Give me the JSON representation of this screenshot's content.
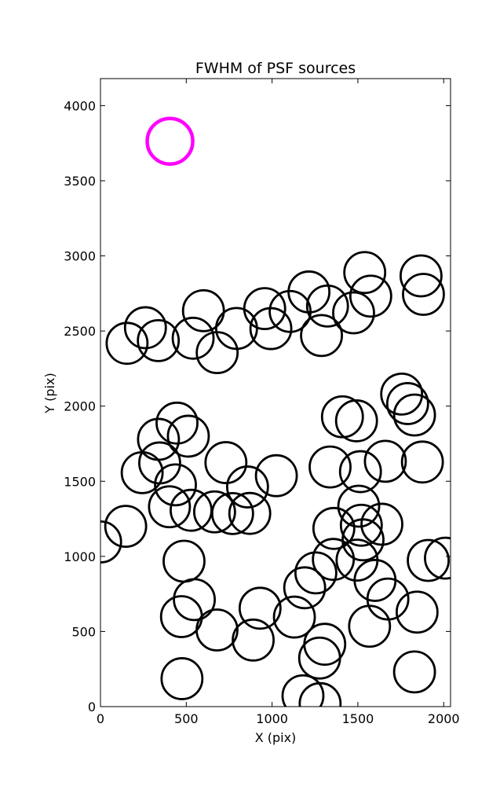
{
  "chart_data": {
    "type": "scatter",
    "title": "FWHM of PSF sources",
    "xlabel": "X (pix)",
    "ylabel": "Y (pix)",
    "xlim": [
      0,
      2040
    ],
    "ylim": [
      0,
      4180
    ],
    "xticks": [
      0,
      500,
      1000,
      1500,
      2000
    ],
    "yticks": [
      0,
      500,
      1000,
      1500,
      2000,
      2500,
      3000,
      3500,
      4000
    ],
    "grid": false,
    "legend": "none",
    "marker": "open-circle",
    "colors": {
      "points": "#000000",
      "reference": "#ff00ff"
    },
    "reference_circle": {
      "x": 405,
      "y": 3763
    },
    "points": [
      {
        "x": 155,
        "y": 2418
      },
      {
        "x": 262,
        "y": 2522
      },
      {
        "x": 337,
        "y": 2436
      },
      {
        "x": 540,
        "y": 2452
      },
      {
        "x": 600,
        "y": 2635
      },
      {
        "x": 680,
        "y": 2356
      },
      {
        "x": 793,
        "y": 2517
      },
      {
        "x": 957,
        "y": 2649
      },
      {
        "x": 993,
        "y": 2516
      },
      {
        "x": 1105,
        "y": 2630
      },
      {
        "x": 1215,
        "y": 2760
      },
      {
        "x": 1323,
        "y": 2666
      },
      {
        "x": 1288,
        "y": 2470
      },
      {
        "x": 1475,
        "y": 2621
      },
      {
        "x": 1540,
        "y": 2889
      },
      {
        "x": 1575,
        "y": 2732
      },
      {
        "x": 1868,
        "y": 2867
      },
      {
        "x": 1882,
        "y": 2744
      },
      {
        "x": 338,
        "y": 1779
      },
      {
        "x": 446,
        "y": 1887
      },
      {
        "x": 512,
        "y": 1800
      },
      {
        "x": 345,
        "y": 1622
      },
      {
        "x": 243,
        "y": 1557
      },
      {
        "x": 437,
        "y": 1476
      },
      {
        "x": 402,
        "y": 1330
      },
      {
        "x": 528,
        "y": 1307
      },
      {
        "x": 665,
        "y": 1296
      },
      {
        "x": 731,
        "y": 1624
      },
      {
        "x": 857,
        "y": 1462
      },
      {
        "x": 770,
        "y": 1285
      },
      {
        "x": 870,
        "y": 1286
      },
      {
        "x": 1025,
        "y": 1537
      },
      {
        "x": 1410,
        "y": 1929
      },
      {
        "x": 1492,
        "y": 1902
      },
      {
        "x": 1755,
        "y": 2080
      },
      {
        "x": 1790,
        "y": 2017
      },
      {
        "x": 1830,
        "y": 1941
      },
      {
        "x": 1338,
        "y": 1595
      },
      {
        "x": 1515,
        "y": 1564
      },
      {
        "x": 1660,
        "y": 1633
      },
      {
        "x": 1876,
        "y": 1628
      },
      {
        "x": 1,
        "y": 1096
      },
      {
        "x": 147,
        "y": 1200
      },
      {
        "x": 487,
        "y": 968
      },
      {
        "x": 547,
        "y": 712
      },
      {
        "x": 472,
        "y": 599
      },
      {
        "x": 679,
        "y": 510
      },
      {
        "x": 930,
        "y": 655
      },
      {
        "x": 890,
        "y": 443
      },
      {
        "x": 1130,
        "y": 596
      },
      {
        "x": 1190,
        "y": 791
      },
      {
        "x": 1255,
        "y": 890
      },
      {
        "x": 1360,
        "y": 1186
      },
      {
        "x": 1357,
        "y": 980
      },
      {
        "x": 1505,
        "y": 1334
      },
      {
        "x": 1520,
        "y": 1207
      },
      {
        "x": 1530,
        "y": 1110
      },
      {
        "x": 1640,
        "y": 1214
      },
      {
        "x": 1495,
        "y": 975
      },
      {
        "x": 1600,
        "y": 840
      },
      {
        "x": 1675,
        "y": 716
      },
      {
        "x": 1568,
        "y": 535
      },
      {
        "x": 1845,
        "y": 629
      },
      {
        "x": 1910,
        "y": 973
      },
      {
        "x": 2010,
        "y": 988
      },
      {
        "x": 1830,
        "y": 231
      },
      {
        "x": 1307,
        "y": 415
      },
      {
        "x": 1277,
        "y": 323
      },
      {
        "x": 475,
        "y": 186
      },
      {
        "x": 1180,
        "y": 72
      },
      {
        "x": 1280,
        "y": 20
      }
    ]
  }
}
